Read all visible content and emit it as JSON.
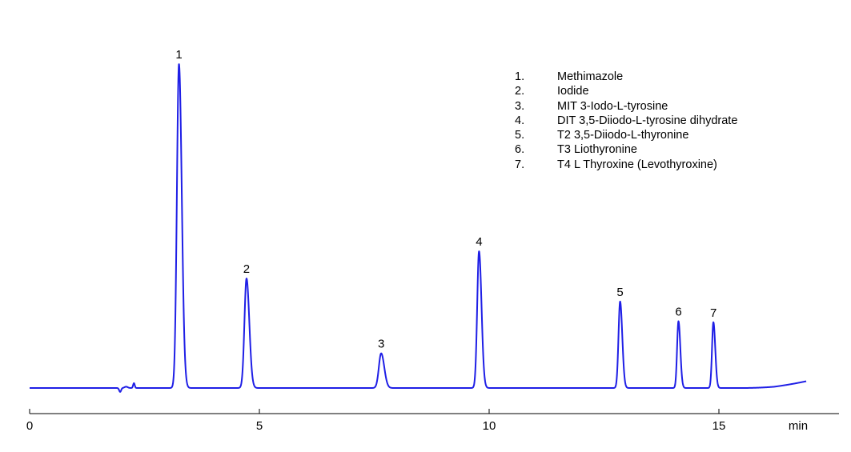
{
  "chart_data": {
    "type": "line",
    "title": "",
    "xlabel": "",
    "ylabel": "",
    "x_unit": "min",
    "xlim": [
      0,
      17.2
    ],
    "x_ticks": [
      0,
      5,
      10,
      15
    ],
    "y_axis_visible": false,
    "grid": false,
    "legend_placement": "top-right",
    "line_color": "#1f1fe6",
    "peaks": [
      {
        "label": "1",
        "rt": 3.25,
        "height": 1.0,
        "width": 0.045
      },
      {
        "label": "2",
        "rt": 4.72,
        "height": 0.338,
        "width": 0.045
      },
      {
        "label": "3",
        "rt": 7.65,
        "height": 0.107,
        "width": 0.05
      },
      {
        "label": "4",
        "rt": 9.78,
        "height": 0.422,
        "width": 0.04
      },
      {
        "label": "5",
        "rt": 12.85,
        "height": 0.267,
        "width": 0.035
      },
      {
        "label": "6",
        "rt": 14.12,
        "height": 0.206,
        "width": 0.03
      },
      {
        "label": "7",
        "rt": 14.88,
        "height": 0.203,
        "width": 0.03
      }
    ],
    "legend": [
      {
        "num": "1.",
        "name": "Methimazole"
      },
      {
        "num": "2.",
        "name": "Iodide"
      },
      {
        "num": "3.",
        "name": "MIT 3-Iodo-L-tyrosine"
      },
      {
        "num": "4.",
        "name": "DIT 3,5-Diiodo-L-tyrosine dihydrate"
      },
      {
        "num": "5.",
        "name": "T2 3,5-Diiodo-L-thyronine"
      },
      {
        "num": "6.",
        "name": "T3 Liothyronine"
      },
      {
        "num": "7.",
        "name": "T4 L Thyroxine (Levothyroxine)"
      }
    ]
  }
}
